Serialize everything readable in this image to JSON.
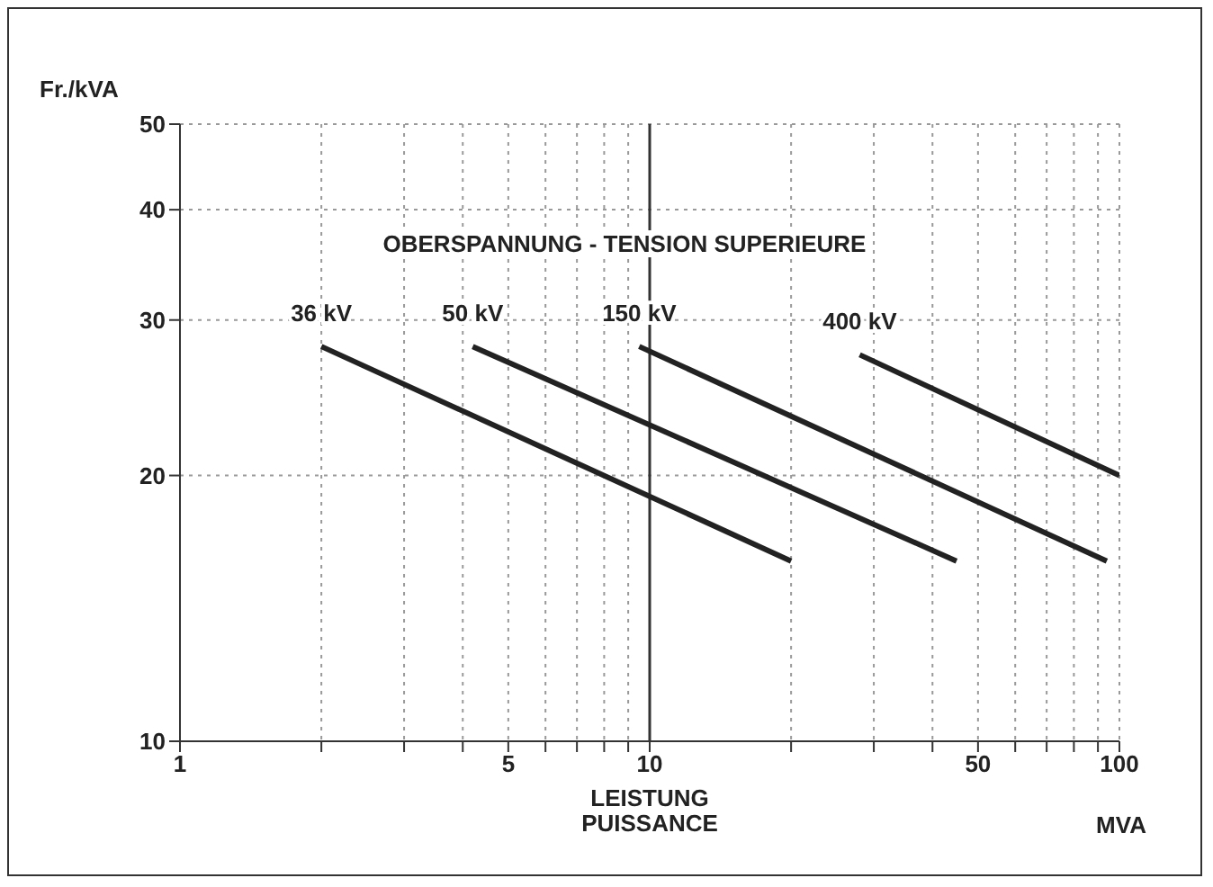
{
  "chart_data": {
    "type": "line",
    "ylabel": "Fr./kVA",
    "xlabel": "LEISTUNG\nPUISSANCE",
    "legend_title": "OBERSPANNUNG - TENSION SUPERIEURE",
    "annotations": [
      "MVA"
    ],
    "series": [
      {
        "name": "36 kV",
        "color": "#222222",
        "x": [
          2,
          20
        ],
        "values": [
          28,
          16
        ]
      },
      {
        "name": "50 kV",
        "color": "#222222",
        "x": [
          4.2,
          45
        ],
        "values": [
          28,
          16
        ]
      },
      {
        "name": "150 kV",
        "color": "#222222",
        "x": [
          9.5,
          94
        ],
        "values": [
          28,
          16
        ]
      },
      {
        "name": "400 kV",
        "color": "#222222",
        "x": [
          28,
          100
        ],
        "values": [
          27.4,
          20
        ]
      }
    ],
    "log": "xy",
    "xlim": [
      1,
      100
    ],
    "ylim": [
      10,
      50
    ],
    "xticks": [
      1,
      {
        "value": 2,
        "label": null
      },
      {
        "value": 3,
        "label": null
      },
      {
        "value": 4,
        "label": null
      },
      5,
      {
        "value": 6,
        "label": null
      },
      {
        "value": 7,
        "label": null
      },
      {
        "value": 8,
        "label": null
      },
      {
        "value": 9,
        "label": null
      },
      10,
      {
        "value": 20,
        "label": null
      },
      {
        "value": 30,
        "label": null
      },
      {
        "value": 40,
        "label": null
      },
      50,
      {
        "value": 60,
        "label": null
      },
      {
        "value": 70,
        "label": null
      },
      {
        "value": 80,
        "label": null
      },
      {
        "value": 90,
        "label": null
      },
      100
    ],
    "yticks": [
      10,
      20,
      30,
      40,
      50
    ],
    "ref_lines": [
      {
        "axis": "x",
        "value": 10,
        "color": "#333333"
      }
    ],
    "grid": true,
    "marker": "none",
    "line_style": "solid"
  }
}
